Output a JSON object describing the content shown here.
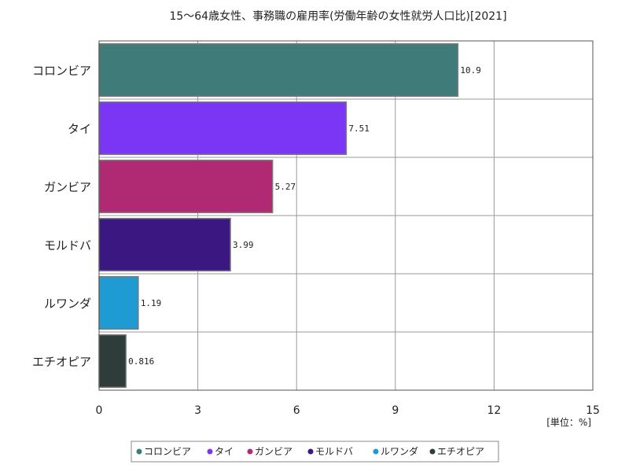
{
  "chart_data": {
    "type": "bar",
    "orientation": "horizontal",
    "title": "15～64歳女性、事務職の雇用率(労働年齢の女性就労人口比)[2021]",
    "unit": "[単位：%]",
    "categories": [
      "コロンビア",
      "タイ",
      "ガンビア",
      "モルドバ",
      "ルワンダ",
      "エチオピア"
    ],
    "values": [
      10.9,
      7.51,
      5.27,
      3.99,
      1.19,
      0.816
    ],
    "value_labels": [
      "10.9",
      "7.51",
      "5.27",
      "3.99",
      "1.19",
      "0.816"
    ],
    "colors": [
      "#3f7b78",
      "#7b35f5",
      "#b02a73",
      "#3b1781",
      "#1e9bd2",
      "#2e3d3a"
    ],
    "xlim": [
      0,
      15
    ],
    "xticks": [
      "0",
      "3",
      "6",
      "9",
      "12",
      "15"
    ],
    "grid": true,
    "legend_position": "bottom",
    "legend": [
      "コロンビア",
      "タイ",
      "ガンビア",
      "モルドバ",
      "ルワンダ",
      "エチオピア"
    ]
  }
}
